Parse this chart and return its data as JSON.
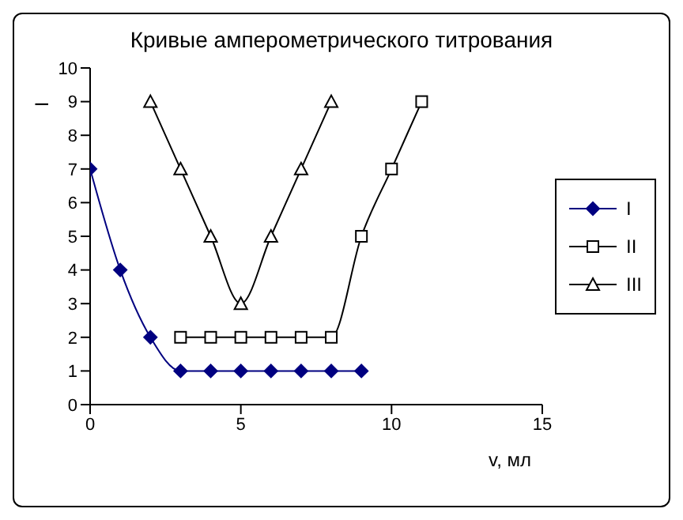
{
  "chart_data": {
    "type": "line",
    "title": "Кривые амперометрического титрования",
    "xlabel": "v, мл",
    "ylabel": "I",
    "xlim": [
      0,
      15
    ],
    "xticks": [
      0,
      5,
      10,
      15
    ],
    "ylim": [
      0,
      10
    ],
    "yticks": [
      0,
      1,
      2,
      3,
      4,
      5,
      6,
      7,
      8,
      9,
      10
    ],
    "grid": false,
    "legend": "right",
    "series": [
      {
        "name": "I",
        "color": "#000080",
        "marker": "diamond",
        "x": [
          0,
          1,
          2,
          3,
          4,
          5,
          6,
          7,
          8,
          9
        ],
        "values": [
          7,
          4,
          2,
          1,
          1,
          1,
          1,
          1,
          1,
          1
        ]
      },
      {
        "name": "II",
        "color": "#000000",
        "marker": "square",
        "x": [
          3,
          4,
          5,
          6,
          7,
          8,
          9,
          10,
          11
        ],
        "values": [
          2,
          2,
          2,
          2,
          2,
          2,
          5,
          7,
          9
        ]
      },
      {
        "name": "III",
        "color": "#000000",
        "marker": "triangle",
        "x": [
          2,
          3,
          4,
          5,
          6,
          7,
          8
        ],
        "values": [
          9,
          7,
          5,
          3,
          5,
          7,
          9
        ]
      }
    ]
  }
}
